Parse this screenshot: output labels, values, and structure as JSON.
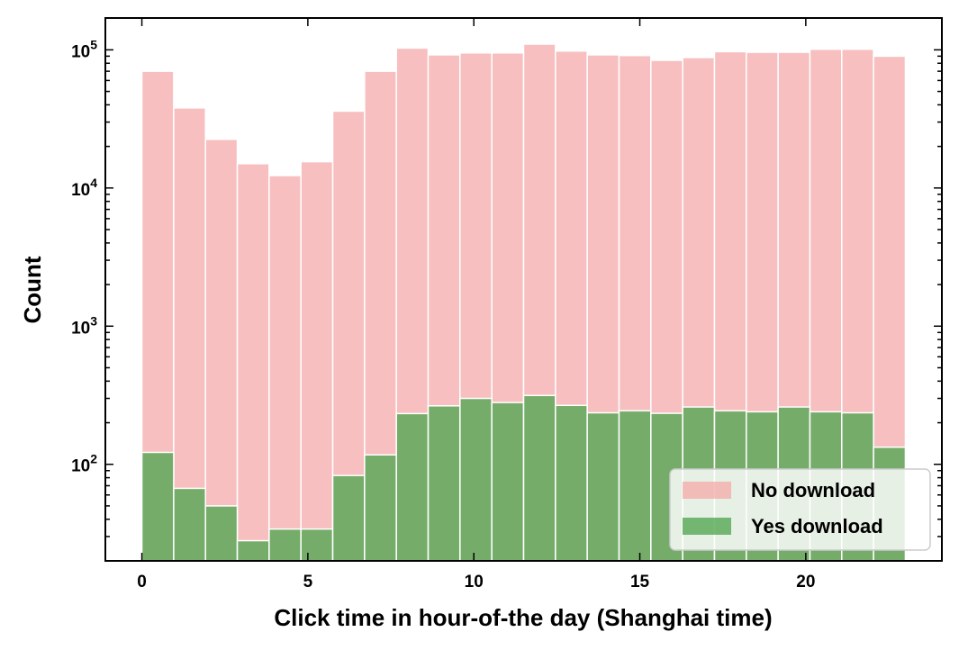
{
  "chart_data": {
    "type": "bar",
    "title": "",
    "xlabel": "Click time in hour-of-the day (Shanghai time)",
    "ylabel": "Count",
    "yscale": "log",
    "xlim": [
      -1.1,
      24.1
    ],
    "ylim": [
      20,
      170000
    ],
    "x_ticks": [
      0,
      5,
      10,
      15,
      20
    ],
    "x_tick_labels": [
      "0",
      "5",
      "10",
      "15",
      "20"
    ],
    "y_ticks": [
      {
        "value": 100,
        "base": "10",
        "exp": "2"
      },
      {
        "value": 1000,
        "base": "10",
        "exp": "3"
      },
      {
        "value": 10000,
        "base": "10",
        "exp": "4"
      },
      {
        "value": 100000,
        "base": "10",
        "exp": "5"
      }
    ],
    "bin_edges": [
      0,
      0.9583,
      1.9167,
      2.875,
      3.8333,
      4.7917,
      5.75,
      6.7083,
      7.6667,
      8.625,
      9.5833,
      10.5417,
      11.5,
      12.4583,
      13.4167,
      14.375,
      15.3333,
      16.2917,
      17.25,
      18.2083,
      19.1667,
      20.125,
      21.0833,
      22.0417,
      23
    ],
    "legend_position": "lower-right",
    "series": [
      {
        "name": "No download",
        "color": "#f4a9a9",
        "opacity": 0.75,
        "values": [
          70000,
          38000,
          22500,
          15000,
          12300,
          15500,
          36000,
          70000,
          103000,
          92000,
          95000,
          95000,
          110000,
          98000,
          92000,
          91000,
          84000,
          88000,
          97000,
          96000,
          96000,
          101000,
          101000,
          90000
        ]
      },
      {
        "name": "Yes download",
        "color": "#55a855",
        "opacity": 0.8,
        "values": [
          122,
          67,
          50,
          28,
          34,
          34,
          83,
          117,
          233,
          265,
          300,
          280,
          315,
          267,
          236,
          244,
          234,
          260,
          244,
          240,
          260,
          240,
          236,
          133
        ]
      }
    ]
  }
}
